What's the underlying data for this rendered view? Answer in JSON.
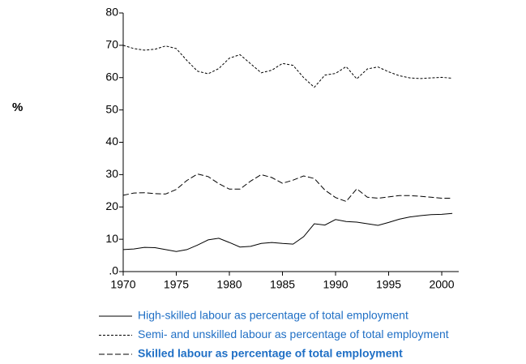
{
  "chart_data": {
    "type": "line",
    "y_label": "%",
    "x": [
      1970,
      1971,
      1972,
      1973,
      1974,
      1975,
      1976,
      1977,
      1978,
      1979,
      1980,
      1981,
      1982,
      1983,
      1984,
      1985,
      1986,
      1987,
      1988,
      1989,
      1990,
      1991,
      1992,
      1993,
      1994,
      1995,
      1996,
      1997,
      1998,
      1999,
      2000,
      2001
    ],
    "series": [
      {
        "name": "High-skilled labour as percentage of total employment",
        "color": "#000000",
        "dash": "solid",
        "values": [
          6.8,
          7,
          7.5,
          7.4,
          6.8,
          6.2,
          6.8,
          8.2,
          9.8,
          10.3,
          9,
          7.6,
          7.8,
          8.7,
          9,
          8.7,
          8.5,
          10.8,
          14.8,
          14.4,
          16.1,
          15.5,
          15.3,
          14.8,
          14.3,
          15.2,
          16.2,
          16.9,
          17.3,
          17.6,
          17.7,
          18
        ]
      },
      {
        "name": "Semi- and unskilled labour as percentage of total employment",
        "color": "#000000",
        "dash": "short",
        "values": [
          70,
          69,
          68.5,
          68.8,
          69.8,
          69,
          65.3,
          62,
          61.2,
          62.8,
          66,
          67.1,
          64.3,
          61.5,
          62.3,
          64.4,
          63.8,
          60,
          57,
          60.8,
          61.3,
          63.4,
          59.6,
          62.7,
          63.3,
          61.8,
          60.6,
          59.9,
          59.7,
          59.9,
          60.1,
          59.8
        ]
      },
      {
        "name": "Skilled labour as percentage of total employment",
        "color": "#000000",
        "dash": "long",
        "values": [
          23.6,
          24.3,
          24.4,
          24.1,
          24,
          25.4,
          28.2,
          30.2,
          29.4,
          27.2,
          25.5,
          25.5,
          28,
          30,
          29.1,
          27.3,
          28.3,
          29.6,
          28.8,
          25.2,
          22.9,
          21.7,
          25.6,
          23,
          22.7,
          23.1,
          23.5,
          23.5,
          23.3,
          23,
          22.7,
          22.7
        ]
      }
    ],
    "xlim": [
      1970,
      2001.6
    ],
    "xticks": [
      1970,
      1975,
      1980,
      1985,
      1990,
      1995,
      2000
    ],
    "ylim": [
      0,
      80
    ],
    "yticks": [
      {
        "value": 0,
        "label": ".0"
      },
      10,
      20,
      30,
      40,
      50,
      60,
      70,
      80
    ],
    "legend_text_color": "#1f6fc5"
  }
}
